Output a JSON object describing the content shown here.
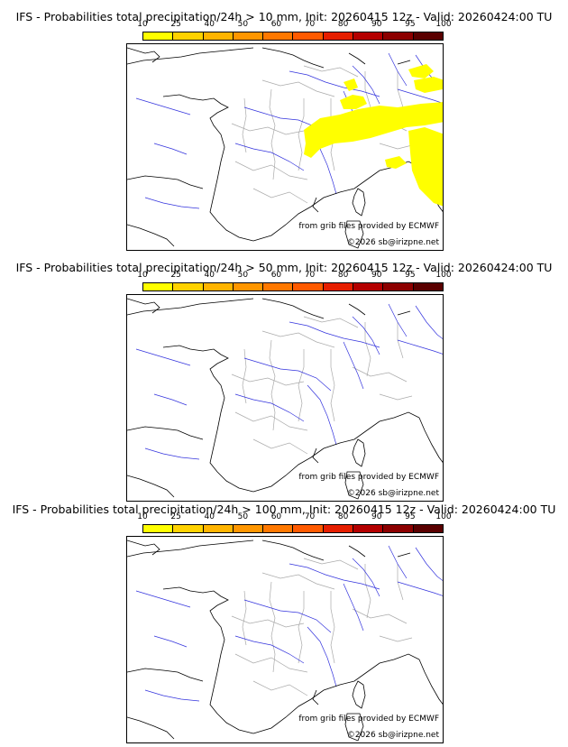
{
  "colorbar": {
    "ticks": [
      "10",
      "25",
      "40",
      "50",
      "60",
      "70",
      "80",
      "90",
      "95",
      "100"
    ],
    "colors": [
      "#ffff00",
      "#ffd200",
      "#ffb400",
      "#ff9600",
      "#ff7800",
      "#ff5a00",
      "#e61e00",
      "#b40000",
      "#8c0000",
      "#5a0000"
    ]
  },
  "panels": [
    {
      "title": "IFS - Probabilities total precipitation/24h > 10 mm, Init: 20260415 12z - Valid: 20260424:00 TU",
      "source": "from grib files provided by ECMWF",
      "copyright": "©2026 sb@irizpne.net"
    },
    {
      "title": "IFS - Probabilities total precipitation/24h > 50 mm, Init: 20260415 12z - Valid: 20260424:00 TU",
      "source": "from grib files provided by ECMWF",
      "copyright": "©2026 sb@irizpne.net"
    },
    {
      "title": "IFS - Probabilities total precipitation/24h > 100 mm, Init: 20260415 12z - Valid: 20260424:00 TU",
      "source": "from grib files provided by ECMWF",
      "copyright": "©2026 sb@irizpne.net"
    }
  ],
  "precip_color": "#ffff00",
  "coast_color": "#000000",
  "river_color": "#3333dd",
  "border_color": "#aaaaaa"
}
